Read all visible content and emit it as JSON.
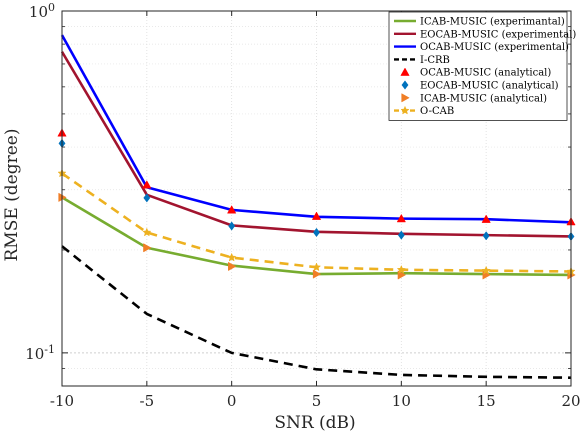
{
  "chart_data": {
    "type": "line",
    "xlabel": "SNR (dB)",
    "ylabel": "RMSE (degree)",
    "xlim": [
      -10,
      20
    ],
    "ylim": [
      0.08,
      1.0
    ],
    "yscale": "log",
    "grid": true,
    "legend_position": "top-right",
    "x_ticks": [
      -10,
      -5,
      0,
      5,
      10,
      15,
      20
    ],
    "x_tick_labels": [
      "-10",
      "-5",
      "0",
      "5",
      "10",
      "15",
      "20"
    ],
    "y_major_ticks": [
      {
        "value": 0.1,
        "base": "10",
        "exp": "-1"
      },
      {
        "value": 1.0,
        "base": "10",
        "exp": "0"
      }
    ],
    "x": [
      -10,
      -5,
      0,
      5,
      10,
      15,
      20
    ],
    "series": [
      {
        "name": "ICAB-MUSIC (experimantal)",
        "color": "#77ac30",
        "style": "solid",
        "marker": "none",
        "values": [
          0.285,
          0.203,
          0.18,
          0.17,
          0.171,
          0.17,
          0.169
        ]
      },
      {
        "name": "EOCAB-MUSIC (experimental)",
        "color": "#a2142f",
        "style": "solid",
        "marker": "none",
        "values": [
          0.76,
          0.29,
          0.236,
          0.226,
          0.223,
          0.221,
          0.219
        ]
      },
      {
        "name": "OCAB-MUSIC (experimental)",
        "color": "#0000ff",
        "style": "solid",
        "marker": "none",
        "values": [
          0.85,
          0.305,
          0.262,
          0.25,
          0.247,
          0.246,
          0.241
        ]
      },
      {
        "name": "I-CRB",
        "color": "#000000",
        "style": "dashed",
        "marker": "none",
        "values": [
          0.205,
          0.13,
          0.1,
          0.0895,
          0.0862,
          0.0851,
          0.0846
        ]
      },
      {
        "name": "OCAB-MUSIC (analytical)",
        "color": "#ff0000",
        "style": "none",
        "marker": "triangle-up",
        "values": [
          0.44,
          0.31,
          0.262,
          0.251,
          0.247,
          0.246,
          0.242
        ]
      },
      {
        "name": "EOCAB-MUSIC (analytical)",
        "color": "#0072bd",
        "style": "none",
        "marker": "diamond",
        "values": [
          0.41,
          0.284,
          0.235,
          0.225,
          0.221,
          0.22,
          0.219
        ]
      },
      {
        "name": "ICAB-MUSIC (analytical)",
        "color": "#f07e26",
        "style": "none",
        "marker": "triangle-right",
        "values": [
          0.285,
          0.203,
          0.179,
          0.17,
          0.169,
          0.169,
          0.169
        ]
      },
      {
        "name": "O-CAB",
        "color": "#edb120",
        "style": "dashed",
        "marker": "star",
        "values": [
          0.335,
          0.225,
          0.19,
          0.178,
          0.175,
          0.174,
          0.173
        ]
      }
    ]
  }
}
